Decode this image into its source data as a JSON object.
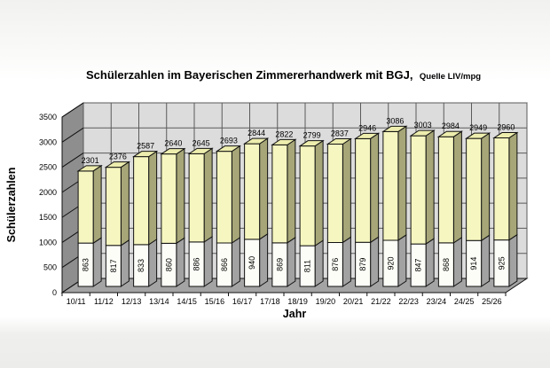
{
  "chart_data": {
    "type": "bar",
    "style": "3d-stacked-column",
    "title": "Schülerzahlen im Bayerischen Zimmererhandwerk mit BGJ,",
    "title_suffix": "Quelle LIV/mpg",
    "xlabel": "Jahr",
    "ylabel": "Schülerzahlen",
    "ylim": [
      0,
      3500
    ],
    "ytick_step": 500,
    "grid": true,
    "legend": "none",
    "categories": [
      "10/11",
      "11/12",
      "12/13",
      "13/14",
      "14/15",
      "15/16",
      "16/17",
      "17/18",
      "18/19",
      "19/20",
      "20/21",
      "21/22",
      "22/23",
      "23/24",
      "24/25",
      "25/26"
    ],
    "series": [
      {
        "name": "lower-white-segment",
        "values": [
          863,
          817,
          833,
          860,
          886,
          866,
          940,
          869,
          811,
          876,
          879,
          920,
          847,
          868,
          914,
          925
        ]
      },
      {
        "name": "upper-yellow-segment",
        "note": "upper segment height = total - lower"
      }
    ],
    "totals": [
      2301,
      2376,
      2587,
      2640,
      2645,
      2693,
      2844,
      2822,
      2799,
      2837,
      2946,
      3086,
      3003,
      2984,
      2949,
      2960
    ],
    "colors": {
      "upper_front": "#f6f6c0",
      "upper_side": "#a6a678",
      "upper_top": "#ededae",
      "lower_front": "#fdfdf8",
      "lower_side": "#a2a2a2",
      "back_wall": "#dcdcdc",
      "side_wall": "#8e8e8e",
      "floor": "#a4a4a4",
      "outline": "#111111",
      "gridline": "#5a5a5a"
    }
  }
}
